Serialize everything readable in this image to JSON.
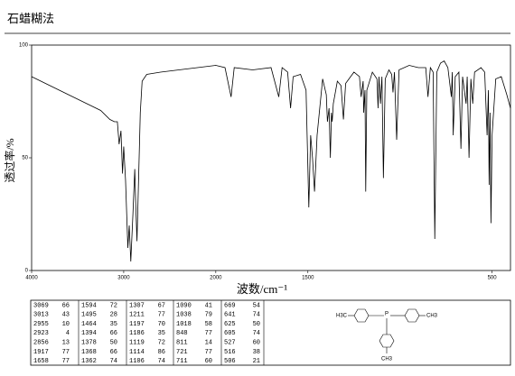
{
  "chart_data": {
    "type": "line",
    "title": "石蜡糊法",
    "xlabel": "波数/cm⁻¹",
    "ylabel": "透过率/%",
    "xlim": [
      4000,
      400
    ],
    "ylim": [
      0,
      100
    ],
    "xscale_break": 2000,
    "xticks": [
      4000,
      3000,
      2000,
      1500,
      500
    ],
    "yticks": [
      0,
      50,
      100
    ],
    "color": "#000000",
    "x": [
      4000,
      3800,
      3600,
      3400,
      3250,
      3150,
      3100,
      3069,
      3050,
      3030,
      3013,
      3000,
      2980,
      2955,
      2940,
      2923,
      2900,
      2880,
      2870,
      2856,
      2845,
      2820,
      2800,
      2750,
      2600,
      2400,
      2200,
      2000,
      1950,
      1917,
      1900,
      1800,
      1700,
      1658,
      1640,
      1610,
      1594,
      1580,
      1540,
      1510,
      1495,
      1485,
      1475,
      1464,
      1450,
      1420,
      1400,
      1394,
      1385,
      1378,
      1372,
      1368,
      1362,
      1340,
      1320,
      1307,
      1295,
      1250,
      1220,
      1211,
      1200,
      1197,
      1190,
      1186,
      1180,
      1150,
      1125,
      1119,
      1114,
      1106,
      1098,
      1090,
      1080,
      1060,
      1045,
      1038,
      1030,
      1018,
      1005,
      950,
      900,
      860,
      848,
      835,
      820,
      811,
      800,
      780,
      760,
      740,
      721,
      716,
      711,
      700,
      680,
      669,
      660,
      641,
      635,
      625,
      615,
      605,
      595,
      560,
      540,
      527,
      520,
      516,
      511,
      506,
      500,
      480,
      450,
      420,
      400
    ],
    "values": [
      86,
      82,
      78,
      74,
      71,
      67,
      66,
      66,
      56,
      62,
      43,
      55,
      40,
      10,
      20,
      4,
      25,
      45,
      30,
      13,
      30,
      70,
      84,
      87,
      88,
      89,
      90,
      91,
      90,
      77,
      90,
      89,
      90,
      77,
      90,
      88,
      72,
      86,
      87,
      80,
      28,
      60,
      50,
      35,
      60,
      85,
      78,
      66,
      72,
      50,
      70,
      66,
      74,
      84,
      82,
      67,
      83,
      88,
      86,
      77,
      84,
      70,
      80,
      35,
      80,
      88,
      85,
      72,
      86,
      74,
      86,
      41,
      85,
      89,
      87,
      79,
      88,
      58,
      89,
      91,
      90,
      90,
      77,
      90,
      88,
      14,
      88,
      92,
      93,
      90,
      77,
      88,
      60,
      86,
      88,
      54,
      86,
      74,
      86,
      50,
      85,
      74,
      88,
      90,
      88,
      60,
      80,
      38,
      70,
      21,
      60,
      85,
      86,
      78,
      72
    ]
  },
  "peak_table": {
    "columns": [
      [
        [
          3069,
          66
        ],
        [
          3013,
          43
        ],
        [
          2955,
          10
        ],
        [
          2923,
          4
        ],
        [
          2856,
          13
        ],
        [
          1917,
          77
        ],
        [
          1658,
          77
        ]
      ],
      [
        [
          1594,
          72
        ],
        [
          1495,
          28
        ],
        [
          1464,
          35
        ],
        [
          1394,
          66
        ],
        [
          1378,
          50
        ],
        [
          1368,
          66
        ],
        [
          1362,
          74
        ]
      ],
      [
        [
          1307,
          67
        ],
        [
          1211,
          77
        ],
        [
          1197,
          70
        ],
        [
          1186,
          35
        ],
        [
          1119,
          72
        ],
        [
          1114,
          86
        ],
        [
          1106,
          74
        ]
      ],
      [
        [
          1090,
          41
        ],
        [
          1038,
          79
        ],
        [
          1018,
          58
        ],
        [
          848,
          77
        ],
        [
          811,
          14
        ],
        [
          721,
          77
        ],
        [
          711,
          60
        ]
      ],
      [
        [
          669,
          54
        ],
        [
          641,
          74
        ],
        [
          625,
          50
        ],
        [
          605,
          74
        ],
        [
          527,
          60
        ],
        [
          516,
          38
        ],
        [
          506,
          21
        ]
      ]
    ]
  },
  "structure_labels": [
    "H3C",
    "P",
    "CH3",
    "CH3"
  ]
}
